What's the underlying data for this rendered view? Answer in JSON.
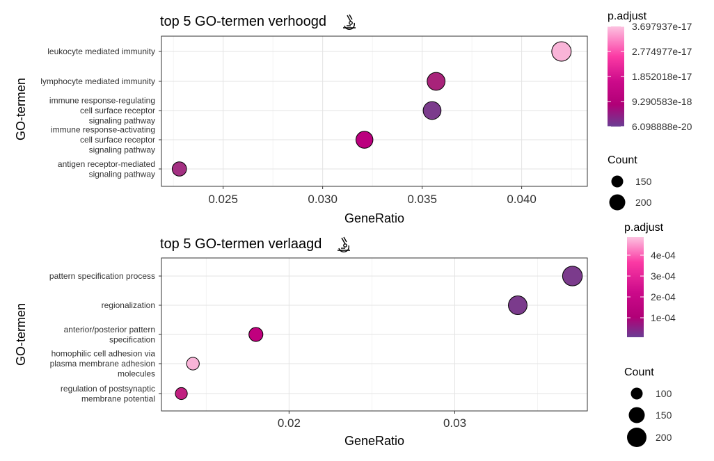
{
  "chart_data": [
    {
      "type": "scatter",
      "title": "top 5 GO-termen verhoogd",
      "title_icon": "microscope-icon",
      "xlabel": "GeneRatio",
      "ylabel": "GO-termen",
      "xlim": [
        0.0219,
        0.0433
      ],
      "xticks": [
        {
          "value": 0.025,
          "label": "0.025"
        },
        {
          "value": 0.03,
          "label": "0.030"
        },
        {
          "value": 0.035,
          "label": "0.035"
        },
        {
          "value": 0.04,
          "label": "0.040"
        }
      ],
      "grid": true,
      "points": [
        {
          "term": [
            "leukocyte mediated immunity"
          ],
          "x": 0.042,
          "count": 212,
          "p_adjust": 3.6e-17,
          "color": "#f9b4d8"
        },
        {
          "term": [
            "lymphocyte mediated immunity"
          ],
          "x": 0.0357,
          "count": 180,
          "p_adjust": 8e-18,
          "color": "#a8237a"
        },
        {
          "term": [
            "immune response-regulating",
            "cell surface receptor",
            "signaling pathway"
          ],
          "x": 0.0355,
          "count": 179,
          "p_adjust": 6.1e-20,
          "color": "#7b3b8c"
        },
        {
          "term": [
            "immune response-activating",
            "cell surface receptor",
            "signaling pathway"
          ],
          "x": 0.0321,
          "count": 162,
          "p_adjust": 1.2e-18,
          "color": "#bb007e"
        },
        {
          "term": [
            "antigen receptor-mediated",
            "signaling pathway"
          ],
          "x": 0.0228,
          "count": 115,
          "p_adjust": 4e-18,
          "color": "#a33082"
        }
      ],
      "legend_color": {
        "title": "p.adjust",
        "labels": [
          "3.697937e-17",
          "2.774977e-17",
          "1.852018e-17",
          "9.290583e-18",
          "6.098888e-20"
        ]
      },
      "legend_size": {
        "title": "Count",
        "labels": [
          "150",
          "200"
        ],
        "values": [
          150,
          200
        ]
      }
    },
    {
      "type": "scatter",
      "title": "top 5 GO-termen verlaagd",
      "title_icon": "microscope-icon",
      "xlabel": "GeneRatio",
      "ylabel": "GO-termen",
      "xlim": [
        0.0123,
        0.038
      ],
      "xticks": [
        {
          "value": 0.02,
          "label": "0.02"
        },
        {
          "value": 0.03,
          "label": "0.03"
        }
      ],
      "grid": true,
      "points": [
        {
          "term": [
            "pattern specification process"
          ],
          "x": 0.0371,
          "count": 218,
          "p_adjust": 1e-06,
          "color": "#7b3b8c"
        },
        {
          "term": [
            "regionalization"
          ],
          "x": 0.0338,
          "count": 196,
          "p_adjust": 1e-06,
          "color": "#7b3b8c"
        },
        {
          "term": [
            "anterior/posterior pattern",
            "specification"
          ],
          "x": 0.018,
          "count": 110,
          "p_adjust": 0.00016,
          "color": "#c0007e"
        },
        {
          "term": [
            "homophilic cell adhesion via",
            "plasma membrane adhesion",
            "molecules"
          ],
          "x": 0.0142,
          "count": 90,
          "p_adjust": 0.00047,
          "color": "#f9b4d8"
        },
        {
          "term": [
            "regulation of postsynaptic",
            "membrane potential"
          ],
          "x": 0.0135,
          "count": 80,
          "p_adjust": 0.0002,
          "color": "#c02080"
        }
      ],
      "legend_color": {
        "title": "p.adjust",
        "labels": [
          "4e-04",
          "3e-04",
          "2e-04",
          "1e-04"
        ]
      },
      "legend_size": {
        "title": "Count",
        "labels": [
          "100",
          "150",
          "200"
        ],
        "values": [
          100,
          150,
          200
        ]
      }
    }
  ]
}
